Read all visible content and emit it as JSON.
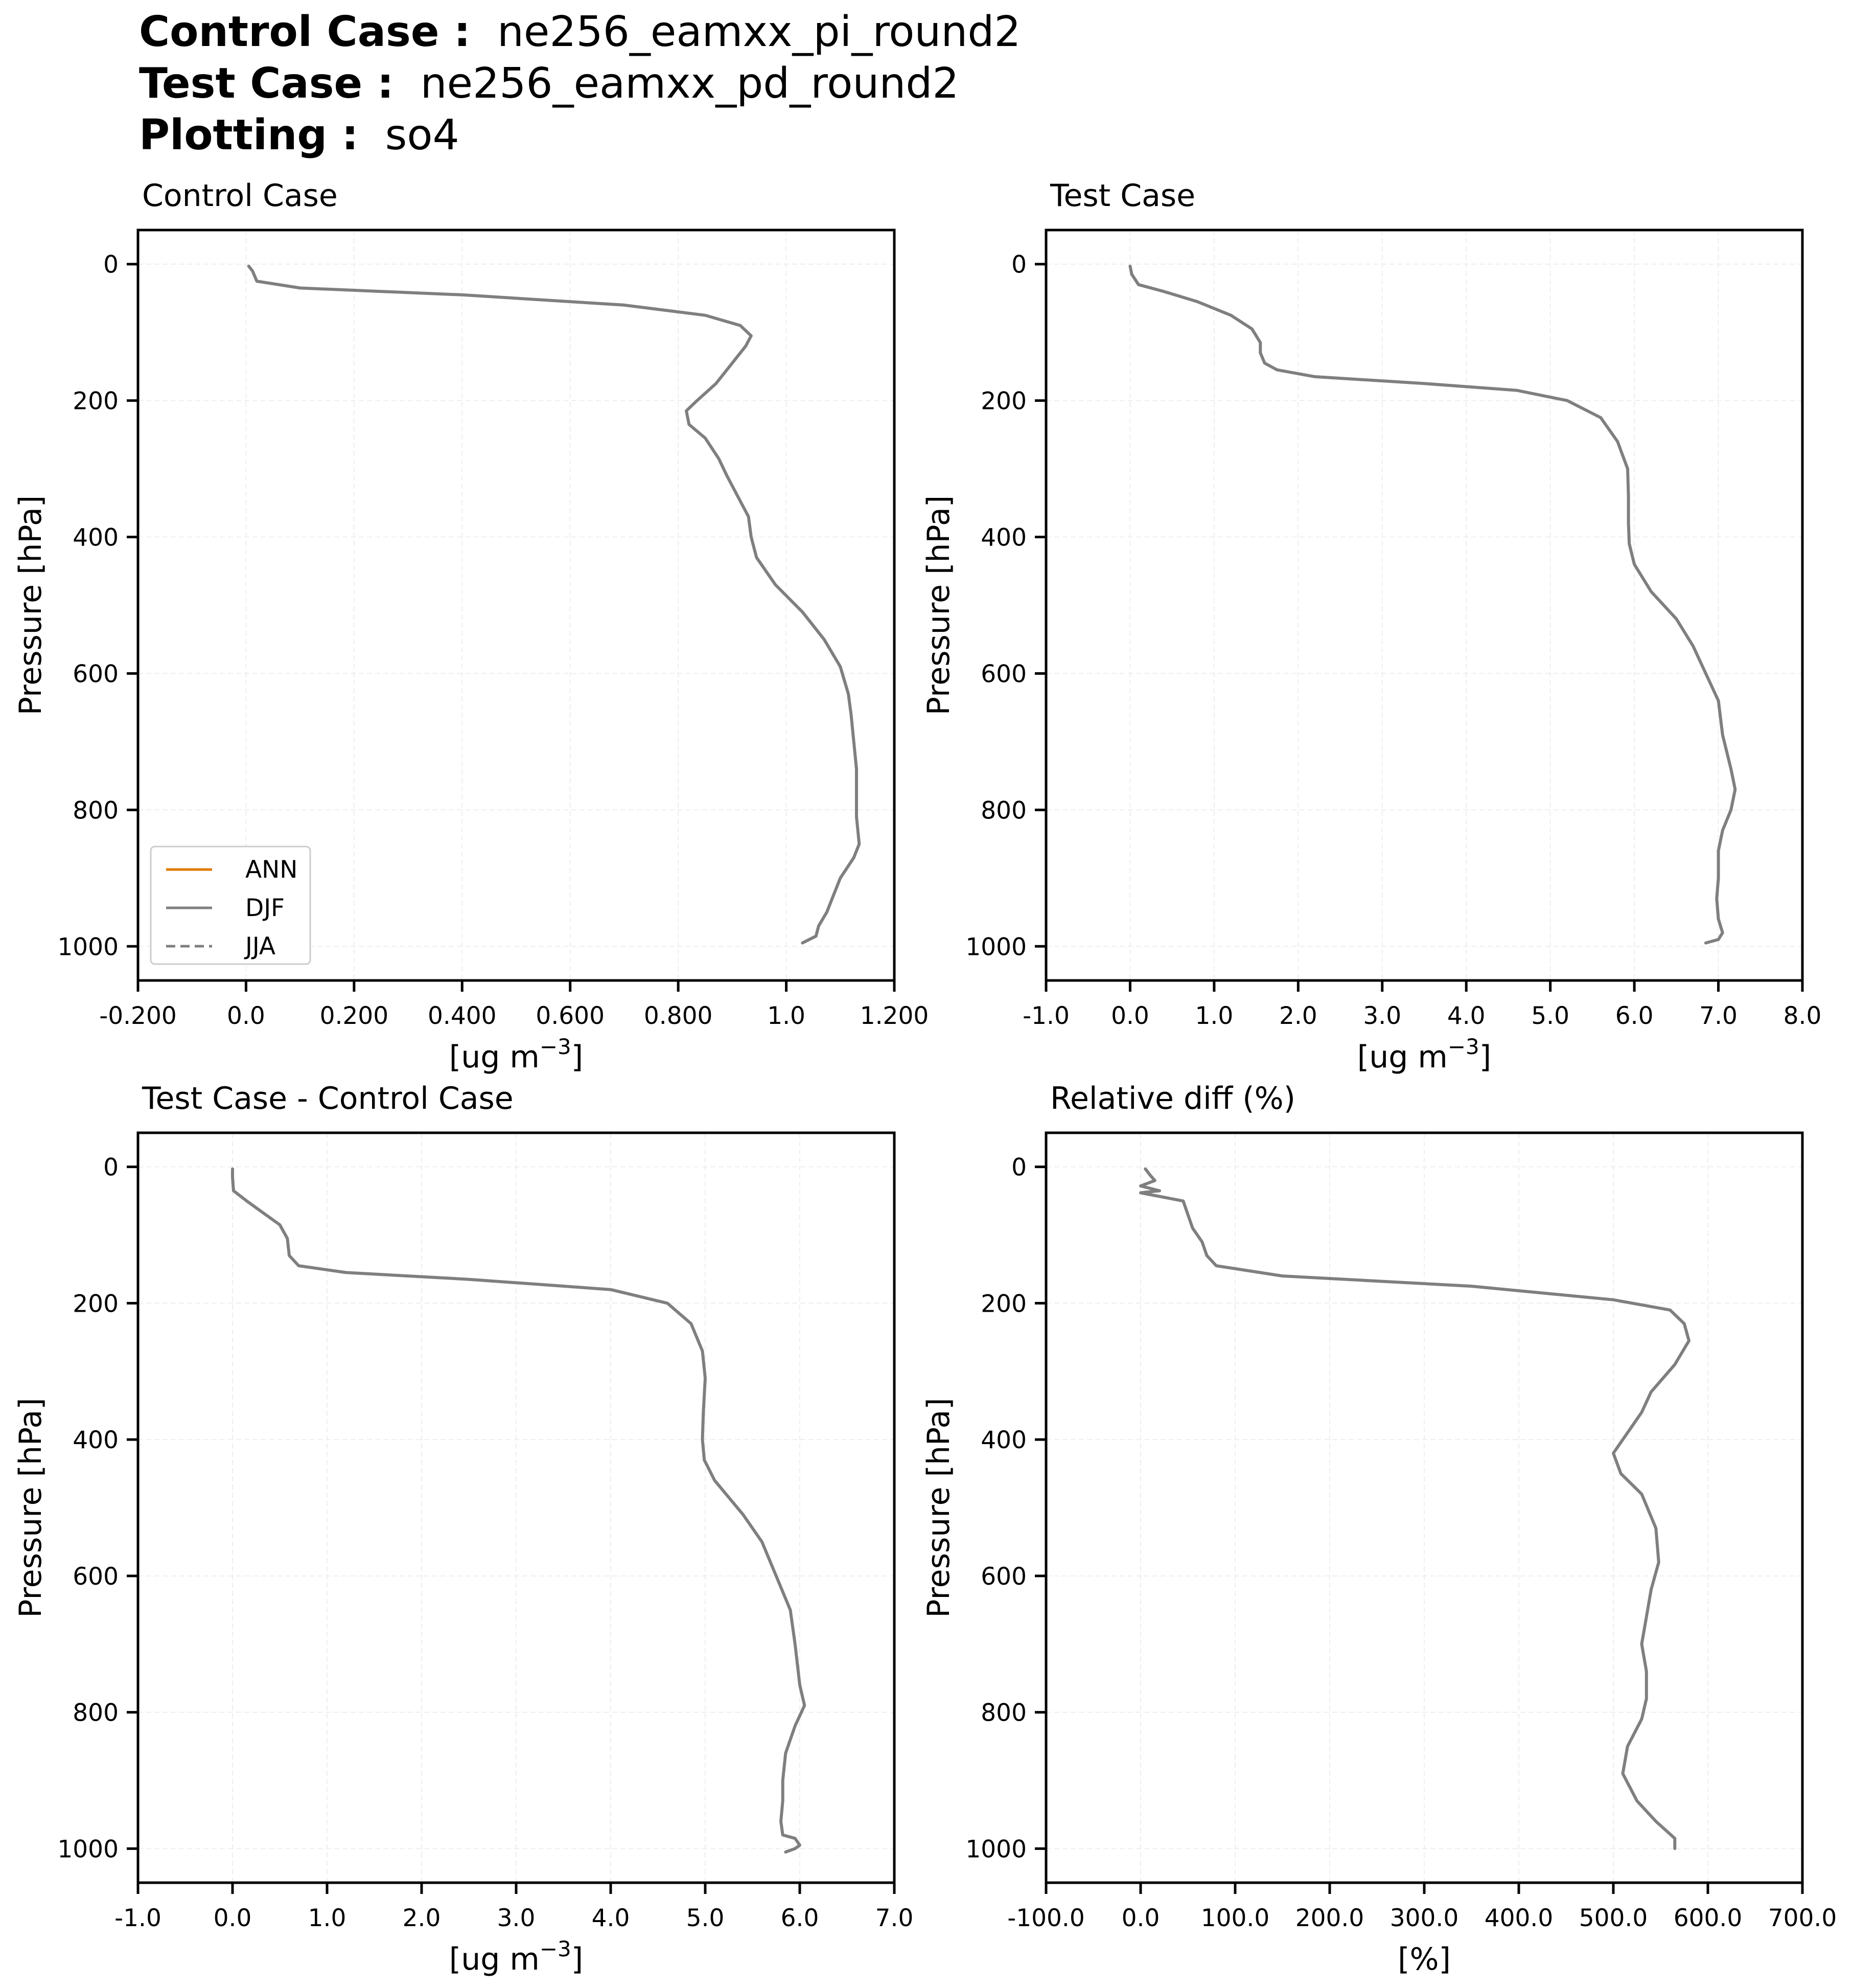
{
  "header": {
    "control_label": "Control Case :",
    "control_value": "ne256_eamxx_pi_round2",
    "test_label": "Test Case :",
    "test_value": "ne256_eamxx_pd_round2",
    "plotting_label": "Plotting :",
    "plotting_value": "so4"
  },
  "legend": [
    {
      "name": "ANN",
      "color": "#e07b00",
      "dash": "solid"
    },
    {
      "name": "DJF",
      "color": "#7f7f7f",
      "dash": "solid"
    },
    {
      "name": "JJA",
      "color": "#7f7f7f",
      "dash": "dashed"
    }
  ],
  "colors": {
    "line": "#7f7f7f",
    "grid": "#eeeeee",
    "axis": "#000000"
  },
  "chart_data": [
    {
      "type": "line",
      "title": "Control Case",
      "xlabel": "[ug m$^{-3}$]",
      "xlabel_main": "[ug m",
      "xlabel_sup": "−3",
      "xlabel_end": "]",
      "ylabel": "Pressure [hPa]",
      "xlim": [
        -0.2,
        1.2
      ],
      "ylim": [
        1050,
        -50
      ],
      "xticks": [
        -0.2,
        0.0,
        0.2,
        0.4,
        0.6,
        0.8,
        1.0,
        1.2
      ],
      "xtick_labels": [
        "-0.200",
        "0.0",
        "0.200",
        "0.400",
        "0.600",
        "0.800",
        "1.0",
        "1.200"
      ],
      "yticks": [
        0,
        200,
        400,
        600,
        800,
        1000
      ],
      "ytick_labels": [
        "0",
        "200",
        "400",
        "600",
        "800",
        "1000"
      ],
      "grid": true,
      "legend": "lower-left",
      "series": [
        {
          "name": "DJF",
          "x": [
            0.005,
            0.012,
            0.02,
            0.1,
            0.4,
            0.7,
            0.85,
            0.915,
            0.935,
            0.925,
            0.9,
            0.87,
            0.835,
            0.815,
            0.82,
            0.85,
            0.875,
            0.89,
            0.91,
            0.93,
            0.935,
            0.945,
            0.98,
            1.03,
            1.07,
            1.1,
            1.115,
            1.12,
            1.125,
            1.13,
            1.13,
            1.13,
            1.135,
            1.125,
            1.1,
            1.085,
            1.075,
            1.06,
            1.055,
            1.03
          ],
          "y": [
            3,
            10,
            25,
            35,
            45,
            60,
            75,
            90,
            105,
            120,
            145,
            175,
            200,
            215,
            235,
            255,
            285,
            310,
            340,
            370,
            400,
            430,
            470,
            510,
            550,
            590,
            630,
            660,
            700,
            740,
            780,
            810,
            850,
            870,
            900,
            930,
            950,
            970,
            985,
            995
          ]
        }
      ]
    },
    {
      "type": "line",
      "title": "Test Case",
      "xlabel": "[ug m$^{-3}$]",
      "xlabel_main": "[ug m",
      "xlabel_sup": "−3",
      "xlabel_end": "]",
      "ylabel": "Pressure [hPa]",
      "xlim": [
        -1.0,
        8.0
      ],
      "ylim": [
        1050,
        -50
      ],
      "xticks": [
        -1,
        0,
        1,
        2,
        3,
        4,
        5,
        6,
        7,
        8
      ],
      "xtick_labels": [
        "-1.0",
        "0.0",
        "1.0",
        "2.0",
        "3.0",
        "4.0",
        "5.0",
        "6.0",
        "7.0",
        "8.0"
      ],
      "yticks": [
        0,
        200,
        400,
        600,
        800,
        1000
      ],
      "ytick_labels": [
        "0",
        "200",
        "400",
        "600",
        "800",
        "1000"
      ],
      "grid": true,
      "series": [
        {
          "name": "DJF",
          "x": [
            0.0,
            0.02,
            0.1,
            0.4,
            0.8,
            1.2,
            1.45,
            1.55,
            1.55,
            1.6,
            1.75,
            2.2,
            3.5,
            4.6,
            5.2,
            5.6,
            5.8,
            5.92,
            5.93,
            5.93,
            5.94,
            6.0,
            6.2,
            6.5,
            6.7,
            6.85,
            7.0,
            7.05,
            7.15,
            7.2,
            7.15,
            7.05,
            7.0,
            7.0,
            6.98,
            7.0,
            7.05,
            7.0,
            6.85
          ],
          "y": [
            3,
            15,
            30,
            40,
            55,
            75,
            95,
            115,
            130,
            145,
            155,
            165,
            175,
            185,
            200,
            225,
            260,
            300,
            340,
            380,
            410,
            440,
            480,
            520,
            560,
            600,
            640,
            690,
            740,
            770,
            800,
            830,
            860,
            900,
            930,
            960,
            980,
            990,
            995
          ]
        }
      ]
    },
    {
      "type": "line",
      "title": "Test Case - Control Case",
      "xlabel": "[ug m$^{-3}$]",
      "xlabel_main": "[ug m",
      "xlabel_sup": "−3",
      "xlabel_end": "]",
      "ylabel": "Pressure [hPa]",
      "xlim": [
        -1.0,
        7.0
      ],
      "ylim": [
        1050,
        -50
      ],
      "xticks": [
        -1,
        0,
        1,
        2,
        3,
        4,
        5,
        6,
        7
      ],
      "xtick_labels": [
        "-1.0",
        "0.0",
        "1.0",
        "2.0",
        "3.0",
        "4.0",
        "5.0",
        "6.0",
        "7.0"
      ],
      "yticks": [
        0,
        200,
        400,
        600,
        800,
        1000
      ],
      "ytick_labels": [
        "0",
        "200",
        "400",
        "600",
        "800",
        "1000"
      ],
      "grid": true,
      "series": [
        {
          "name": "DJF",
          "x": [
            0.0,
            0.0,
            0.01,
            0.15,
            0.3,
            0.5,
            0.58,
            0.6,
            0.7,
            1.2,
            2.5,
            4.0,
            4.6,
            4.85,
            4.97,
            5.0,
            4.98,
            4.97,
            4.99,
            5.1,
            5.4,
            5.6,
            5.75,
            5.9,
            5.95,
            6.0,
            6.05,
            5.95,
            5.85,
            5.82,
            5.82,
            5.8,
            5.82,
            5.95,
            6.0,
            5.95,
            5.85
          ],
          "y": [
            3,
            15,
            35,
            50,
            65,
            85,
            105,
            130,
            145,
            155,
            165,
            180,
            200,
            230,
            270,
            310,
            360,
            400,
            430,
            460,
            510,
            550,
            600,
            650,
            700,
            760,
            790,
            820,
            860,
            900,
            930,
            960,
            980,
            985,
            995,
            1000,
            1005
          ]
        }
      ]
    },
    {
      "type": "line",
      "title": "Relative diff (%)",
      "xlabel": "[%]",
      "xlabel_main": "[%]",
      "xlabel_sup": "",
      "xlabel_end": "",
      "ylabel": "Pressure [hPa]",
      "xlim": [
        -100,
        700
      ],
      "ylim": [
        1050,
        -50
      ],
      "xticks": [
        -100,
        0,
        100,
        200,
        300,
        400,
        500,
        600,
        700
      ],
      "xtick_labels": [
        "-100.0",
        "0.0",
        "100.0",
        "200.0",
        "300.0",
        "400.0",
        "500.0",
        "600.0",
        "700.0"
      ],
      "yticks": [
        0,
        200,
        400,
        600,
        800,
        1000
      ],
      "ytick_labels": [
        "0",
        "200",
        "400",
        "600",
        "800",
        "1000"
      ],
      "grid": true,
      "series": [
        {
          "name": "DJF",
          "x": [
            5,
            10,
            15,
            0,
            20,
            0,
            45,
            50,
            55,
            65,
            70,
            80,
            150,
            350,
            500,
            560,
            575,
            580,
            565,
            540,
            530,
            515,
            500,
            508,
            530,
            545,
            548,
            540,
            535,
            530,
            535,
            535,
            530,
            515,
            510,
            525,
            545,
            565,
            565
          ],
          "y": [
            3,
            12,
            20,
            28,
            35,
            38,
            50,
            70,
            90,
            110,
            130,
            145,
            160,
            175,
            195,
            210,
            230,
            255,
            290,
            330,
            360,
            390,
            420,
            450,
            480,
            530,
            580,
            620,
            660,
            700,
            740,
            780,
            810,
            850,
            890,
            930,
            960,
            985,
            1000
          ]
        }
      ]
    }
  ]
}
